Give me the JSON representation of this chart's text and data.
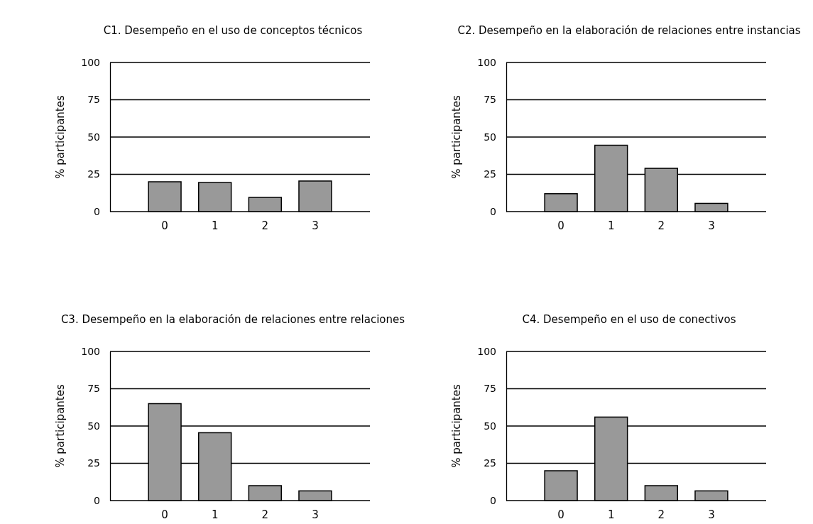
{
  "chart_data": [
    {
      "type": "bar",
      "title": "C1. Desempeño en el uso de conceptos técnicos",
      "ylabel": "% participantes",
      "categories": [
        "0",
        "1",
        "2",
        "3"
      ],
      "values": [
        20,
        19.5,
        9.5,
        20.5
      ],
      "color": "#999999",
      "ylim": [
        0,
        100
      ],
      "yticks": [
        0,
        25,
        50,
        75,
        100
      ],
      "grid": "y"
    },
    {
      "type": "bar",
      "title": "C2. Desempeño en la elaboración de relaciones entre instancias",
      "ylabel": "% participantes",
      "categories": [
        "0",
        "1",
        "2",
        "3"
      ],
      "values": [
        12,
        44.5,
        29,
        5.5
      ],
      "color": "#999999",
      "ylim": [
        0,
        100
      ],
      "yticks": [
        0,
        25,
        50,
        75,
        100
      ],
      "grid": "y"
    },
    {
      "type": "bar",
      "title": "C3. Desempeño en la elaboración de relaciones entre relaciones",
      "ylabel": "% participantes",
      "categories": [
        "0",
        "1",
        "2",
        "3"
      ],
      "values": [
        65,
        45.5,
        10,
        6.5
      ],
      "color": "#999999",
      "ylim": [
        0,
        100
      ],
      "yticks": [
        0,
        25,
        50,
        75,
        100
      ],
      "grid": "y"
    },
    {
      "type": "bar",
      "title": "C4. Desempeño en el uso de conectivos",
      "ylabel": "% participantes",
      "categories": [
        "0",
        "1",
        "2",
        "3"
      ],
      "values": [
        20,
        56,
        10,
        6.5
      ],
      "color": "#999999",
      "ylim": [
        0,
        100
      ],
      "yticks": [
        0,
        25,
        50,
        75,
        100
      ],
      "grid": "y"
    }
  ]
}
